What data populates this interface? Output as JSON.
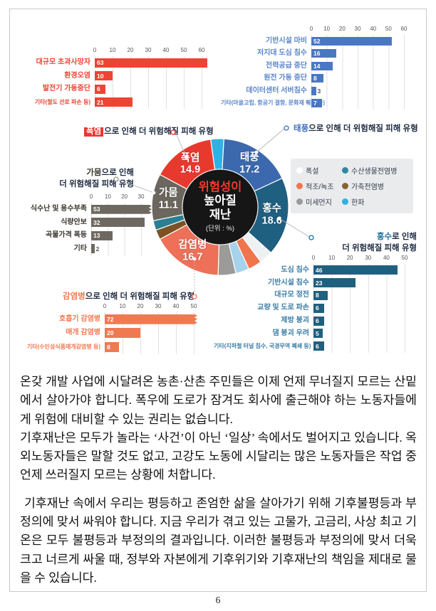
{
  "page": {
    "number": "6"
  },
  "legend": {
    "items": [
      {
        "label": "폭설",
        "color": "#ffffff"
      },
      {
        "label": "적조/녹조",
        "color": "#f0744c"
      },
      {
        "label": "미세먼지",
        "color": "#9b9b99"
      },
      {
        "label": "수산생물전염병",
        "color": "#2e89a0"
      },
      {
        "label": "가축전염병",
        "color": "#8a6236"
      },
      {
        "label": "한파",
        "color": "#2fb1e3"
      }
    ]
  },
  "chart_data": [
    {
      "id": "heatwave-damage",
      "type": "bar",
      "orientation": "horizontal",
      "title_accent": "폭염",
      "title_rest": "으로 인해 더 위험해질 피해 유형",
      "accent_color": "#e8392e",
      "bar_color": "#ee4434",
      "label_color": "#ee4434",
      "categories": [
        "대규모 초과사망자",
        "환경오염",
        "발전기 가동중단",
        "기타(철도 선로 파손 등)"
      ],
      "values": [
        63,
        10,
        6,
        21
      ],
      "xlim": [
        0,
        60
      ],
      "ticks": [
        0,
        10,
        20,
        30,
        40,
        50,
        60
      ]
    },
    {
      "id": "typhoon-damage",
      "type": "bar",
      "orientation": "horizontal",
      "title_accent": "태풍",
      "title_rest": "으로 인해 더 위험해질 피해 유형",
      "accent_color": "#3b6fc4",
      "bar_color": "#4a77c2",
      "label_color": "#5b86cc",
      "categories": [
        "기반시설 마비",
        "저지대 도심 침수",
        "전력공급 중단",
        "원전 가동 중단",
        "데이터센터 서버침수",
        "기타(마을고립, 항공기 결항, 문화재 훼손 등)"
      ],
      "values": [
        52,
        16,
        14,
        8,
        3,
        7
      ],
      "xlim": [
        0,
        60
      ],
      "ticks": [
        0,
        10,
        20,
        30,
        40,
        50,
        60
      ]
    },
    {
      "id": "drought-damage",
      "type": "bar",
      "orientation": "horizontal",
      "title_accent": "가뭄",
      "title_rest": "으로 인해",
      "title_line2": "더 위험해질 피해 유형",
      "accent_color": "#3a362f",
      "bar_color": "#6e6960",
      "label_color": "#3a362f",
      "categories": [
        "식수난 및 용수부족",
        "식량안보",
        "곡물가격 폭등",
        "기타"
      ],
      "values": [
        53,
        32,
        13,
        2
      ],
      "xlim": [
        0,
        30
      ],
      "ticks": [
        0,
        10,
        20,
        30
      ]
    },
    {
      "id": "risk-donut",
      "type": "pie",
      "subtype": "donut",
      "center": {
        "accent": "위험성이",
        "line2": "높아질",
        "line3": "재난",
        "unit": "(단위 : %)"
      },
      "segments": [
        {
          "label": "태풍",
          "value": 17.2
        },
        {
          "label": "홍수",
          "value": 18.6
        },
        {
          "label": "감염병",
          "value": 16.7
        },
        {
          "label": "폭염",
          "value": 14.9
        },
        {
          "label": "가뭄",
          "value": 11.1
        }
      ],
      "other_segments": [
        "폭설",
        "적조/녹조",
        "미세먼지",
        "수산생물전염병",
        "가축전염병",
        "한파"
      ],
      "wedges": [
        {
          "label": "한파",
          "value": 3.1,
          "color": "#2fb1e3"
        },
        {
          "label": "태풍",
          "value": 17.2,
          "color": "#3c69ae",
          "major": true
        },
        {
          "label": "홍수",
          "value": 18.6,
          "color": "#1f5f80",
          "major": true
        },
        {
          "label": "폭설",
          "value": 3.2,
          "color": "#eef1f4"
        },
        {
          "label": "적조/녹조",
          "value": 3.2,
          "color": "#f0744c"
        },
        {
          "label": "한파",
          "value": 3.2,
          "color": "#a6d2ec"
        },
        {
          "label": "미세먼지",
          "value": 4.2,
          "color": "#9b9b99"
        },
        {
          "label": "감염병",
          "value": 16.7,
          "color": "#ee7058",
          "major": true
        },
        {
          "label": "가축전염병",
          "value": 2.3,
          "color": "#7a5224"
        },
        {
          "label": "수산생물전염병",
          "value": 2.3,
          "color": "#2a7f92"
        },
        {
          "label": "가뭄",
          "value": 11.1,
          "color": "#6b665e",
          "major": true
        },
        {
          "label": "폭염",
          "value": 14.9,
          "color": "#e8392e",
          "major": true
        }
      ]
    },
    {
      "id": "flood-damage",
      "type": "bar",
      "orientation": "horizontal",
      "title_accent": "홍수",
      "title_rest": "로 인해",
      "title_line2": "더 위험해질 피해 유형",
      "accent_color": "#1c6f9e",
      "bar_color": "#20607f",
      "label_color": "#3d7ea6",
      "categories": [
        "도심 침수",
        "기반시설 침수",
        "대규모 정전",
        "교량 및 도로 파손",
        "제방 붕괴",
        "댐 붕괴 우려",
        "기타(지하철 터널 침수, 국경무역 폐쇄 등)"
      ],
      "values": [
        46,
        23,
        8,
        6,
        6,
        5,
        6
      ],
      "xlim": [
        0,
        50
      ],
      "ticks": [
        0,
        10,
        20,
        30,
        40,
        50
      ]
    },
    {
      "id": "infection-damage",
      "type": "bar",
      "orientation": "horizontal",
      "title_accent": "감염병",
      "title_rest": "으로 인해 더 위험해질 피해 유형",
      "accent_color": "#ef7a52",
      "bar_color": "#ef7a52",
      "label_color": "#ef7a52",
      "categories": [
        "호흡기 감염병",
        "매개 감염병",
        "기타(수인성식품매개감염병 등)"
      ],
      "values": [
        72,
        20,
        8
      ],
      "xlim": [
        0,
        50
      ],
      "ticks": [
        0,
        10,
        20,
        30,
        40,
        50
      ]
    }
  ],
  "paragraphs": [
    "온갖 개발 사업에 시달려온 농촌·산촌 주민들은 이제 언제 무너질지 모르는 산밑에서 살아가야 합니다. 폭우에 도로가 잠겨도 회사에 출근해야 하는 노동자들에게 위험에 대비할 수 있는 권리는 없습니다.",
    "기후재난은 모두가 놀라는 ‘사건’이 아닌 ‘일상’ 속에서도 벌어지고 있습니다. 옥외노동자들은 말할 것도 없고, 고강도 노동에 시달리는 많은 노동자들은 작업 중 언제 쓰러질지 모르는 상황에 처합니다.",
    "기후재난 속에서 우리는 평등하고 존엄한 삶을 살아가기 위해 기후불평등과 부정의에 맞서 싸워야 합니다. 지금 우리가 겪고 있는 고물가, 고금리, 사상 최고 기온은 모두 불평등과 부정의의 결과입니다. 이러한 불평등과 부정의에 맞서 더욱 크고 너르게 싸울 때, 정부와 자본에게 기후위기와 기후재난의 책임을 제대로 물을 수 있습니다."
  ]
}
